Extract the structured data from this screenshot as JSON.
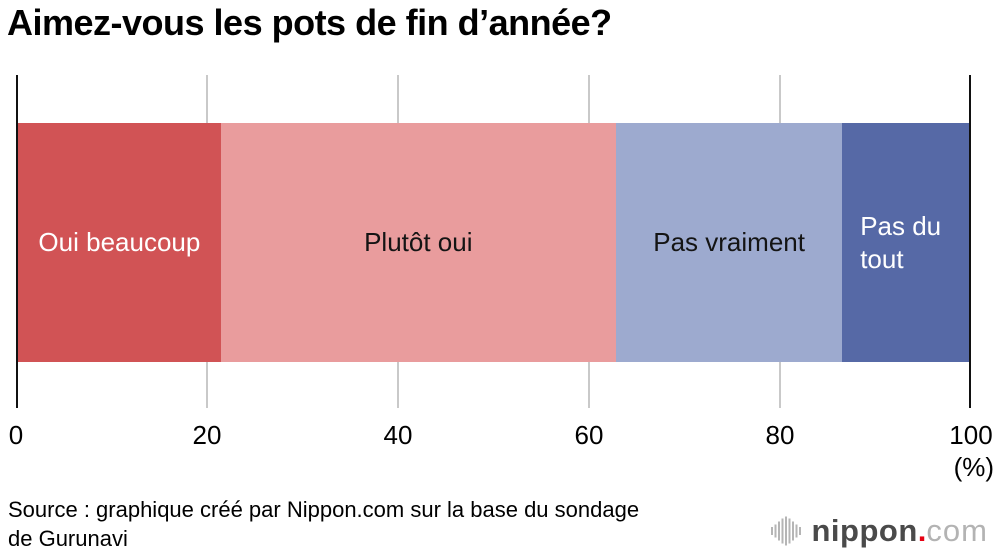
{
  "title": "Aimez-vous les pots de fin d’année?",
  "chart_data": {
    "type": "bar",
    "subtype": "horizontal-stacked-100pct",
    "title": "Aimez-vous les pots de fin d’année?",
    "categories": [
      "Oui beaucoup",
      "Plutôt oui",
      "Pas vraiment",
      "Pas du tout"
    ],
    "values": [
      21.3,
      41.5,
      23.8,
      13.4
    ],
    "unit": "%",
    "colors": [
      "#d15355",
      "#e99c9d",
      "#9daacf",
      "#5669a6"
    ],
    "label_colors": [
      "#ffffff",
      "#141414",
      "#141414",
      "#ffffff"
    ],
    "xlim": [
      0,
      100
    ],
    "xticks": [
      0,
      20,
      40,
      60,
      80,
      100
    ],
    "xtick_labels": [
      "0",
      "20",
      "40",
      "60",
      "80",
      "100"
    ],
    "xlabel": "(%)",
    "grid": true,
    "legend": "none"
  },
  "source": {
    "line1": "Source : graphique créé par Nippon.com sur la base du sondage",
    "line2": "de Gurunavi"
  },
  "logo": {
    "icon": "soundwave-bars-icon",
    "name": "nippon",
    "dot": ".",
    "tld": "com",
    "dot_color": "#e60012"
  },
  "colors": {
    "background": "#ffffff",
    "grid": "#c9c9c9",
    "axis": "#111111",
    "title_text": "#000000"
  }
}
